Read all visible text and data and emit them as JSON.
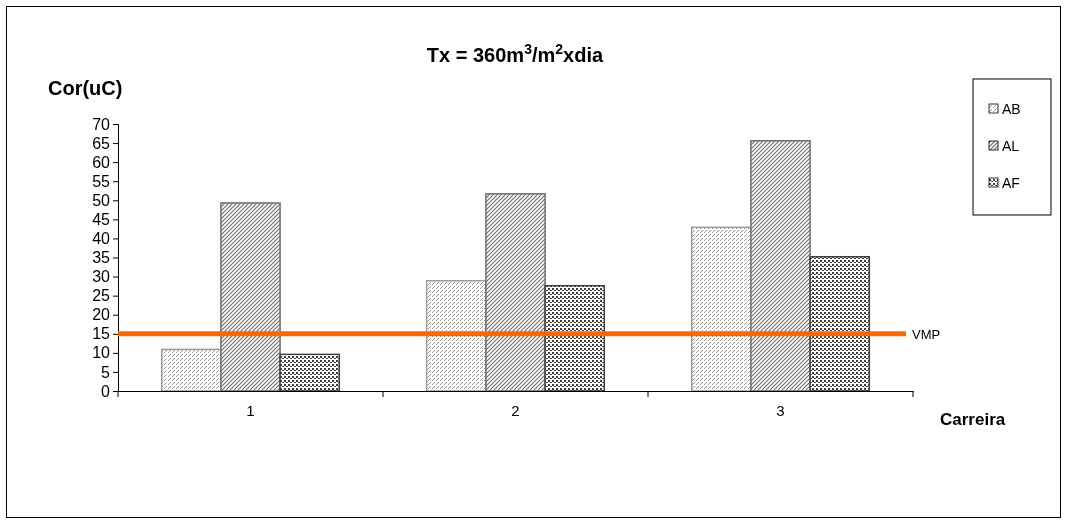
{
  "chart_data": {
    "type": "bar",
    "title": "Tx = 360m$^{3}$/m$^{2}$xdia",
    "xlabel": "Carreira",
    "ylabel": "Cor(uC)",
    "categories": [
      "1",
      "2",
      "3"
    ],
    "series": [
      {
        "name": "AB",
        "color": "#9a9a9a",
        "values": [
          10.9,
          28.9,
          42.9
        ]
      },
      {
        "name": "AL",
        "color": "#707070",
        "values": [
          49.3,
          51.7,
          65.6
        ]
      },
      {
        "name": "AF",
        "color": "#404040",
        "values": [
          9.6,
          27.6,
          35.2
        ]
      }
    ],
    "ylim": [
      0,
      70
    ],
    "yticks": [
      0,
      5,
      10,
      15,
      20,
      25,
      30,
      35,
      40,
      45,
      50,
      55,
      60,
      65,
      70
    ],
    "ref_lines": [
      {
        "axis": "y",
        "value": 15,
        "label": "VMP",
        "color": "#ff6600"
      }
    ],
    "legend": "right",
    "grid": false
  }
}
